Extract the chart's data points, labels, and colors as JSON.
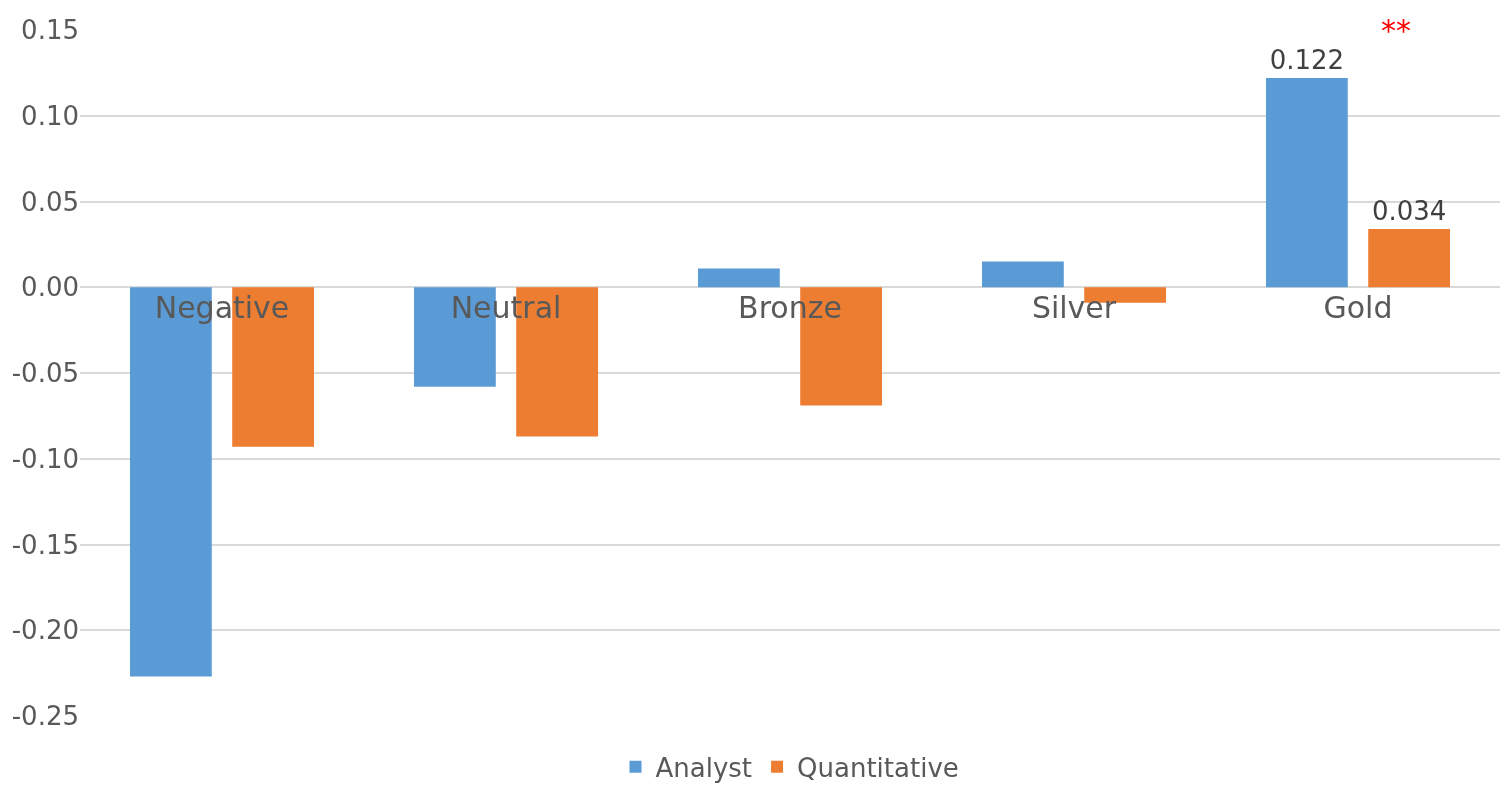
{
  "chart_data": {
    "type": "bar",
    "categories": [
      "Negative",
      "Neutral",
      "Bronze",
      "Silver",
      "Gold"
    ],
    "series": [
      {
        "name": "Analyst",
        "color": "#5b9bd5",
        "values": [
          -0.227,
          -0.058,
          0.011,
          0.015,
          0.122
        ],
        "value_labels": [
          null,
          null,
          null,
          null,
          "0.122"
        ]
      },
      {
        "name": "Quantitative",
        "color": "#ed7d31",
        "values": [
          -0.093,
          -0.087,
          -0.069,
          -0.009,
          0.034
        ],
        "value_labels": [
          null,
          null,
          null,
          null,
          "0.034"
        ]
      }
    ],
    "annotations": [
      "**"
    ],
    "ylim": [
      -0.25,
      0.15
    ],
    "yticks": [
      {
        "value": -0.25,
        "label": "-0.25"
      },
      {
        "value": -0.2,
        "label": "-0.20"
      },
      {
        "value": -0.15,
        "label": "-0.15"
      },
      {
        "value": -0.1,
        "label": "-0.10"
      },
      {
        "value": -0.05,
        "label": "-0.05"
      },
      {
        "value": 0,
        "label": "0.00"
      },
      {
        "value": 0.05,
        "label": "0.05"
      },
      {
        "value": 0.1,
        "label": "0.10"
      },
      {
        "value": 0.15,
        "label": "0.15"
      }
    ],
    "grid": "y",
    "legend": "bottom"
  }
}
